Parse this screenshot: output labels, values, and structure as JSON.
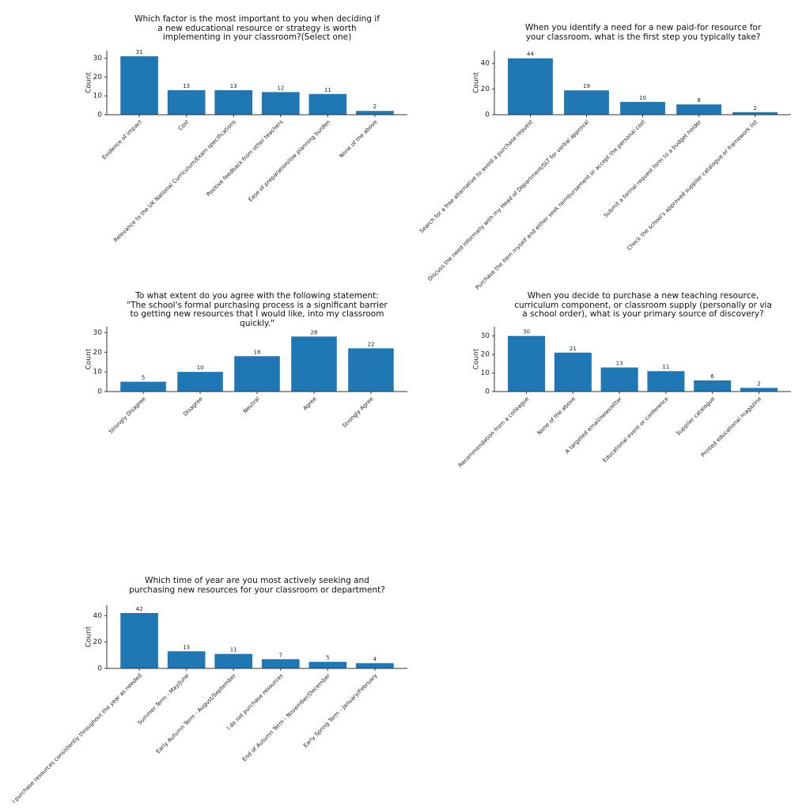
{
  "chart_data": [
    {
      "type": "bar",
      "title": "Which factor is the most important to you when deciding if a new educational resource or strategy is worth implementing in your classroom?(Select one)",
      "y_label": "Count",
      "color": "#1f77b4",
      "categories": [
        "Evidence of impact",
        "Cost",
        "Relevance to the UK National Curriculum/Exam specifications",
        "Positive feedback from other teachers",
        "Ease of preparation/low planning burden",
        "None of the above"
      ],
      "values": [
        31,
        13,
        13,
        12,
        11,
        2
      ],
      "ylim": [
        0,
        34
      ],
      "yticks": [
        0,
        10,
        20,
        30
      ]
    },
    {
      "type": "bar",
      "title": "When you identify a need for a new paid-for resource for your classroom, what is the first step you typically take?",
      "y_label": "Count",
      "color": "#1f77b4",
      "categories": [
        "Search for a free alternative to avoid a purchase request",
        "Discuss the need informally with my Head of Department/SLT for verbal approval",
        "Purchase the item myself and either seek reimbursement or accept the personal cost",
        "Submit a formal request form to a budget holder",
        "Check the school's approved supplier catalogue or framework list"
      ],
      "values": [
        44,
        19,
        10,
        8,
        2
      ],
      "ylim": [
        0,
        50
      ],
      "yticks": [
        0,
        20,
        40
      ]
    },
    {
      "type": "bar",
      "title": "To what extent do you agree with the following statement: \"The school's formal purchasing process is a significant barrier to getting new resources that I would like, into my classroom quickly.\"",
      "y_label": "Count",
      "color": "#1f77b4",
      "categories": [
        "Strongly Disagree",
        "Disagree",
        "Neutral",
        "Agree",
        "Strongly Agree"
      ],
      "values": [
        5,
        10,
        18,
        28,
        22
      ],
      "ylim": [
        0,
        33
      ],
      "yticks": [
        0,
        10,
        20,
        30
      ]
    },
    {
      "type": "bar",
      "title": "When you decide to purchase a new teaching resource, curriculum component, or classroom supply (personally or via a school order), what is your primary source of discovery?",
      "y_label": "Count",
      "color": "#1f77b4",
      "categories": [
        "Recommendation from a colleague",
        "None of the above",
        "A targeted email/newsletter",
        "Educational event or conference",
        "Supplier catalogue",
        "Printed educational magazine"
      ],
      "values": [
        30,
        21,
        13,
        11,
        6,
        2
      ],
      "ylim": [
        0,
        35
      ],
      "yticks": [
        0,
        10,
        20,
        30
      ]
    },
    {
      "type": "bar",
      "title": "Which time of year are you most actively seeking and purchasing new resources for your classroom or department?",
      "y_label": "Count",
      "color": "#1f77b4",
      "categories": [
        "I purchase resources consistently throughout the year as needed",
        "Summer Term - May/June",
        "Early Autumn Term - August/September",
        "I do not purchase resources",
        "End of Autumn Term - November/December",
        "Early Spring Term - January/February"
      ],
      "values": [
        42,
        13,
        11,
        7,
        5,
        4
      ],
      "ylim": [
        0,
        48
      ],
      "yticks": [
        0,
        20,
        40
      ]
    }
  ]
}
